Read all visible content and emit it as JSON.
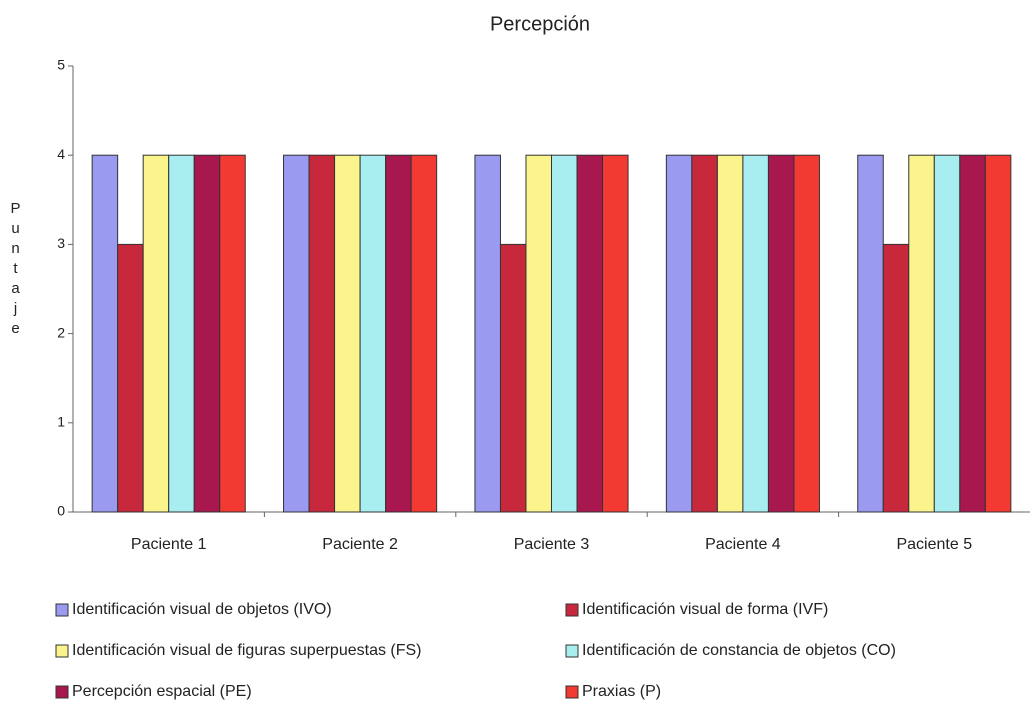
{
  "chart_data": {
    "type": "bar",
    "title": "Percepción",
    "y_label": "Puntaje",
    "categories": [
      "Paciente 1",
      "Paciente 2",
      "Paciente 3",
      "Paciente 4",
      "Paciente 5"
    ],
    "series": [
      {
        "name": "Identificación visual de objetos (IVO)",
        "color": "#9a9af0",
        "values": [
          4,
          4,
          4,
          4,
          4
        ]
      },
      {
        "name": "Identificación visual de forma (IVF)",
        "color": "#c8283c",
        "values": [
          3,
          4,
          3,
          4,
          3
        ]
      },
      {
        "name": "Identificación visual de figuras superpuestas (FS)",
        "color": "#fbf48c",
        "values": [
          4,
          4,
          4,
          4,
          4
        ]
      },
      {
        "name": "Identificación de constancia de objetos (CO)",
        "color": "#a8eef0",
        "values": [
          4,
          4,
          4,
          4,
          4
        ]
      },
      {
        "name": "Percepción espacial (PE)",
        "color": "#a8174e",
        "values": [
          4,
          4,
          4,
          4,
          4
        ]
      },
      {
        "name": "Praxias (P)",
        "color": "#f23a32",
        "values": [
          4,
          4,
          4,
          4,
          4
        ]
      }
    ],
    "ylim": [
      0,
      5
    ],
    "yticks": [
      0,
      1,
      2,
      3,
      4,
      5
    ],
    "grid": false
  }
}
